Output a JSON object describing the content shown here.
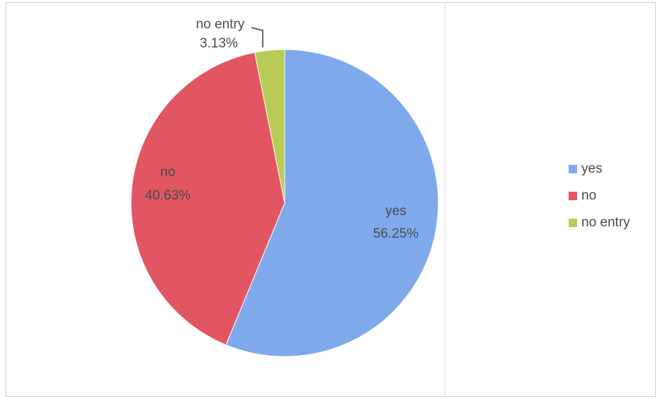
{
  "chart_data": {
    "type": "pie",
    "slices": [
      {
        "label": "yes",
        "value": 56.25,
        "display": "56.25%",
        "color": "#7eaaec"
      },
      {
        "label": "no",
        "value": 40.63,
        "display": "40.63%",
        "color": "#e15662"
      },
      {
        "label": "no entry",
        "value": 3.13,
        "display": "3.13%",
        "color": "#b8cc56"
      }
    ],
    "legend": {
      "position": "right",
      "entries": [
        "yes",
        "no",
        "no entry"
      ]
    }
  }
}
